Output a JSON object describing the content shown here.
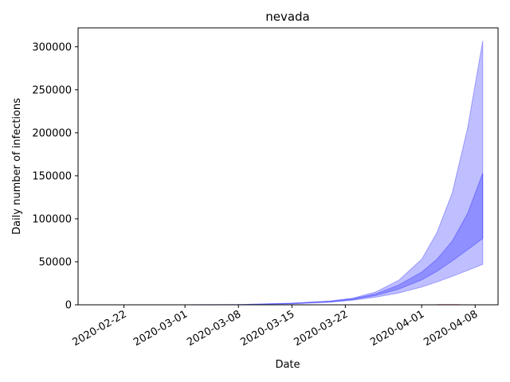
{
  "chart_data": {
    "type": "area",
    "title": "nevada",
    "xlabel": "Date",
    "ylabel": "Daily number of infections",
    "xlim": [
      "2020-02-16",
      "2020-04-11"
    ],
    "ylim": [
      0,
      322000
    ],
    "x_ticks": [
      "2020-02-22",
      "2020-03-01",
      "2020-03-08",
      "2020-03-15",
      "2020-03-22",
      "2020-04-01",
      "2020-04-08"
    ],
    "y_ticks": [
      0,
      50000,
      100000,
      150000,
      200000,
      250000,
      300000
    ],
    "y_tick_labels": [
      "0",
      "50000",
      "100000",
      "150000",
      "200000",
      "250000",
      "300000"
    ],
    "grid": false,
    "legend": "none",
    "series": [
      {
        "kind": "band",
        "color": "#0000ff",
        "opacity": 0.25,
        "x": [
          "2020-03-01",
          "2020-03-08",
          "2020-03-15",
          "2020-03-20",
          "2020-03-23",
          "2020-03-26",
          "2020-03-29",
          "2020-04-01",
          "2020-04-03",
          "2020-04-05",
          "2020-04-07",
          "2020-04-09"
        ],
        "lower": [
          0,
          200,
          1100,
          3000,
          5400,
          8900,
          13800,
          20600,
          26600,
          33000,
          40000,
          47000
        ],
        "upper": [
          0,
          300,
          1900,
          4500,
          7800,
          15000,
          28500,
          53000,
          84000,
          130000,
          205000,
          307000
        ]
      },
      {
        "kind": "band",
        "color": "#0000ff",
        "opacity": 0.25,
        "x": [
          "2020-03-01",
          "2020-03-08",
          "2020-03-15",
          "2020-03-20",
          "2020-03-23",
          "2020-03-26",
          "2020-03-29",
          "2020-04-01",
          "2020-04-03",
          "2020-04-05",
          "2020-04-07",
          "2020-04-09"
        ],
        "lower": [
          0,
          250,
          1400,
          3500,
          6300,
          10900,
          18200,
          29000,
          39000,
          51000,
          64000,
          77000
        ],
        "upper": [
          0,
          250,
          1600,
          4000,
          7000,
          12800,
          23000,
          38000,
          53000,
          74000,
          106000,
          153000
        ]
      },
      {
        "kind": "line",
        "color": "#d62728",
        "x": [
          "2020-04-03",
          "2020-04-06"
        ],
        "values": [
          150,
          180
        ]
      }
    ]
  }
}
